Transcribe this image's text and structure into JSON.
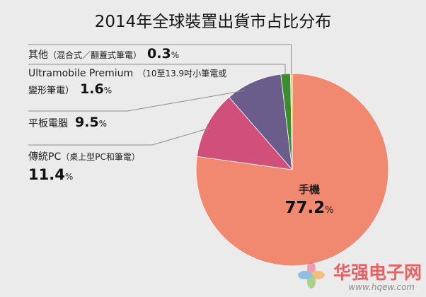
{
  "colors": {
    "background": "#EBEBEB",
    "leader_line": "#8C8C8C",
    "slice_border": "#FFFFFF"
  },
  "chart_data": {
    "type": "pie",
    "title": "2014年全球裝置出貨市占比分布",
    "unit": "%",
    "slices": [
      {
        "label": "手機",
        "value": 77.2,
        "color": "#F0896F"
      },
      {
        "label": "傳統PC",
        "detail_lines": [
          "（桌上型PC和筆電）"
        ],
        "value": 11.4,
        "color": "#D14F7B"
      },
      {
        "label": "平板電腦",
        "value": 9.5,
        "color": "#6B5D8B"
      },
      {
        "label": "Ultramobile Premium",
        "detail_lines": [
          "（10至13.9吋小筆電或",
          "變形筆電）"
        ],
        "value": 1.6,
        "color": "#3B8C2F"
      },
      {
        "label": "其他",
        "detail_lines": [
          "（混合式／翻蓋式筆電）"
        ],
        "value": 0.3,
        "color": "#C5D84C"
      }
    ]
  },
  "watermark": {
    "name": "华强电子网",
    "url": "www.hqew.com"
  }
}
